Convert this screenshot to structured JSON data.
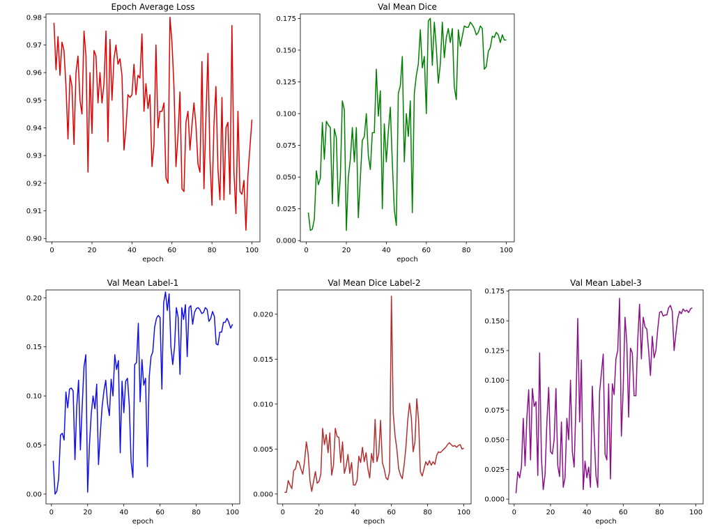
{
  "chart_data": [
    {
      "type": "line",
      "title": "Epoch Average Loss",
      "xlabel": "epoch",
      "ylabel": "",
      "color": "#e00000",
      "xlim": [
        -3,
        104
      ],
      "ylim": [
        0.8988,
        0.9812
      ],
      "xticks": [
        0,
        20,
        40,
        60,
        80,
        100
      ],
      "yticks": [
        0.9,
        0.91,
        0.92,
        0.93,
        0.94,
        0.95,
        0.96,
        0.97,
        0.98
      ],
      "ytick_labels": [
        "0.90",
        "0.91",
        "0.92",
        "0.93",
        "0.94",
        "0.95",
        "0.96",
        "0.97",
        "0.98"
      ],
      "x_start": 1,
      "values": [
        0.978,
        0.961,
        0.973,
        0.959,
        0.971,
        0.968,
        0.955,
        0.936,
        0.959,
        0.955,
        0.934,
        0.96,
        0.966,
        0.95,
        0.945,
        0.975,
        0.966,
        0.924,
        0.96,
        0.938,
        0.968,
        0.966,
        0.949,
        0.96,
        0.949,
        0.956,
        0.975,
        0.935,
        0.972,
        0.95,
        0.965,
        0.97,
        0.963,
        0.965,
        0.959,
        0.932,
        0.94,
        0.952,
        0.951,
        0.952,
        0.963,
        0.952,
        0.959,
        0.958,
        0.974,
        0.946,
        0.956,
        0.947,
        0.952,
        0.926,
        0.934,
        0.97,
        0.94,
        0.946,
        0.946,
        0.949,
        0.922,
        0.92,
        0.98,
        0.971,
        0.955,
        0.926,
        0.937,
        0.953,
        0.918,
        0.917,
        0.942,
        0.946,
        0.932,
        0.941,
        0.949,
        0.941,
        0.927,
        0.924,
        0.964,
        0.918,
        0.944,
        0.967,
        0.929,
        0.912,
        0.941,
        0.955,
        0.925,
        0.914,
        0.951,
        0.914,
        0.94,
        0.942,
        0.916,
        0.977,
        0.924,
        0.909,
        0.946,
        0.917,
        0.916,
        0.921,
        0.903,
        0.923,
        0.933,
        0.943
      ]
    },
    {
      "type": "line",
      "title": "Val Mean Dice",
      "xlabel": "epoch",
      "ylabel": "",
      "color": "#008000",
      "xlim": [
        -3,
        104
      ],
      "ylim": [
        -0.001,
        0.1785
      ],
      "xticks": [
        0,
        20,
        40,
        60,
        80,
        100
      ],
      "yticks": [
        0.0,
        0.025,
        0.05,
        0.075,
        0.1,
        0.125,
        0.15,
        0.175
      ],
      "ytick_labels": [
        "0.000",
        "0.025",
        "0.050",
        "0.075",
        "0.100",
        "0.125",
        "0.150",
        "0.175"
      ],
      "x_start": 1,
      "values": [
        0.022,
        0.008,
        0.009,
        0.017,
        0.055,
        0.044,
        0.049,
        0.093,
        0.064,
        0.094,
        0.091,
        0.089,
        0.029,
        0.088,
        0.081,
        0.027,
        0.05,
        0.11,
        0.103,
        0.008,
        0.05,
        0.064,
        0.089,
        0.062,
        0.089,
        0.018,
        0.049,
        0.079,
        0.082,
        0.1,
        0.067,
        0.056,
        0.085,
        0.085,
        0.135,
        0.098,
        0.118,
        0.025,
        0.092,
        0.062,
        0.086,
        0.105,
        0.061,
        0.024,
        0.012,
        0.116,
        0.122,
        0.145,
        0.062,
        0.1,
        0.082,
        0.11,
        0.022,
        0.116,
        0.13,
        0.139,
        0.166,
        0.136,
        0.145,
        0.1,
        0.173,
        0.175,
        0.138,
        0.172,
        0.152,
        0.124,
        0.139,
        0.172,
        0.144,
        0.16,
        0.167,
        0.156,
        0.167,
        0.121,
        0.111,
        0.166,
        0.153,
        0.161,
        0.169,
        0.168,
        0.168,
        0.172,
        0.17,
        0.167,
        0.162,
        0.164,
        0.169,
        0.167,
        0.135,
        0.137,
        0.149,
        0.152,
        0.161,
        0.16,
        0.164,
        0.162,
        0.156,
        0.162,
        0.158,
        0.158
      ]
    },
    {
      "type": "line",
      "title": "Val Mean Label-1",
      "xlabel": "epoch",
      "ylabel": "",
      "color": "#1010e8",
      "xlim": [
        -3,
        104
      ],
      "ylim": [
        -0.01,
        0.208
      ],
      "xticks": [
        0,
        20,
        40,
        60,
        80,
        100
      ],
      "yticks": [
        0.0,
        0.05,
        0.1,
        0.15,
        0.2
      ],
      "ytick_labels": [
        "0.00",
        "0.05",
        "0.10",
        "0.15",
        "0.20"
      ],
      "x_start": 1,
      "values": [
        0.034,
        0.0,
        0.003,
        0.016,
        0.06,
        0.062,
        0.055,
        0.104,
        0.088,
        0.107,
        0.108,
        0.105,
        0.035,
        0.09,
        0.116,
        0.045,
        0.09,
        0.13,
        0.142,
        0.002,
        0.05,
        0.082,
        0.1,
        0.087,
        0.112,
        0.03,
        0.062,
        0.089,
        0.105,
        0.116,
        0.092,
        0.08,
        0.117,
        0.1,
        0.142,
        0.127,
        0.136,
        0.042,
        0.115,
        0.083,
        0.115,
        0.118,
        0.091,
        0.033,
        0.017,
        0.132,
        0.134,
        0.174,
        0.094,
        0.137,
        0.111,
        0.118,
        0.028,
        0.119,
        0.14,
        0.145,
        0.17,
        0.179,
        0.182,
        0.18,
        0.107,
        0.195,
        0.206,
        0.187,
        0.204,
        0.15,
        0.132,
        0.15,
        0.19,
        0.18,
        0.122,
        0.19,
        0.178,
        0.193,
        0.14,
        0.19,
        0.192,
        0.173,
        0.185,
        0.189,
        0.19,
        0.188,
        0.184,
        0.185,
        0.19,
        0.188,
        0.176,
        0.179,
        0.186,
        0.181,
        0.153,
        0.152,
        0.165,
        0.165,
        0.175,
        0.175,
        0.179,
        0.175,
        0.169,
        0.173
      ]
    },
    {
      "type": "line",
      "title": "Val Mean Dice Label-2",
      "xlabel": "epoch",
      "ylabel": "",
      "color": "#b03030",
      "xlim": [
        -3,
        104
      ],
      "ylim": [
        -0.0011,
        0.0227
      ],
      "xticks": [
        0,
        20,
        40,
        60,
        80,
        100
      ],
      "yticks": [
        0.0,
        0.005,
        0.01,
        0.015,
        0.02
      ],
      "ytick_labels": [
        "0.000",
        "0.005",
        "0.010",
        "0.015",
        "0.020"
      ],
      "x_start": 1,
      "values": [
        0.0002,
        0.0002,
        0.0015,
        0.001,
        0.0006,
        0.0026,
        0.0028,
        0.0037,
        0.0035,
        0.0028,
        0.0022,
        0.0036,
        0.0058,
        0.0045,
        0.0015,
        0.0003,
        0.0014,
        0.0025,
        0.0012,
        0.0014,
        0.0022,
        0.0073,
        0.0055,
        0.0066,
        0.0046,
        0.0068,
        0.0021,
        0.0032,
        0.0073,
        0.0064,
        0.0063,
        0.0035,
        0.0058,
        0.0023,
        0.0031,
        0.0044,
        0.0023,
        0.0035,
        0.001,
        0.001,
        0.0015,
        0.0042,
        0.0035,
        0.0052,
        0.0036,
        0.0046,
        0.0028,
        0.0018,
        0.0045,
        0.0035,
        0.0083,
        0.0036,
        0.0045,
        0.0082,
        0.0035,
        0.0028,
        0.0018,
        0.0016,
        0.0025,
        0.022,
        0.009,
        0.0065,
        0.005,
        0.0028,
        0.0021,
        0.0017,
        0.0032,
        0.0052,
        0.0082,
        0.0101,
        0.0085,
        0.0047,
        0.0058,
        0.0106,
        0.0082,
        0.0025,
        0.002,
        0.0028,
        0.0036,
        0.0032,
        0.0037,
        0.0032,
        0.0036,
        0.0033,
        0.0043,
        0.0047,
        0.0046,
        0.0048,
        0.005,
        0.0052,
        0.0055,
        0.0057,
        0.0055,
        0.0053,
        0.0054,
        0.0052,
        0.0054,
        0.0055,
        0.005,
        0.0051
      ]
    },
    {
      "type": "line",
      "title": "Val Mean Label-3",
      "xlabel": "epoch",
      "ylabel": "",
      "color": "#8b108b",
      "xlim": [
        -3,
        104
      ],
      "ylim": [
        -0.004,
        0.176
      ],
      "xticks": [
        0,
        20,
        40,
        60,
        80,
        100
      ],
      "yticks": [
        0.0,
        0.025,
        0.05,
        0.075,
        0.1,
        0.125,
        0.15,
        0.175
      ],
      "ytick_labels": [
        "0.000",
        "0.025",
        "0.050",
        "0.075",
        "0.100",
        "0.125",
        "0.150",
        "0.175"
      ],
      "x_start": 1,
      "values": [
        0.005,
        0.023,
        0.018,
        0.027,
        0.068,
        0.028,
        0.069,
        0.092,
        0.033,
        0.093,
        0.078,
        0.082,
        0.02,
        0.123,
        0.035,
        0.008,
        0.021,
        0.065,
        0.094,
        0.04,
        0.038,
        0.05,
        0.093,
        0.028,
        0.019,
        0.065,
        0.01,
        0.018,
        0.068,
        0.05,
        0.1,
        0.04,
        0.027,
        0.08,
        0.152,
        0.065,
        0.117,
        0.008,
        0.032,
        0.018,
        0.027,
        0.01,
        0.095,
        0.055,
        0.02,
        0.01,
        0.09,
        0.106,
        0.122,
        0.038,
        0.033,
        0.097,
        0.017,
        0.097,
        0.088,
        0.118,
        0.125,
        0.169,
        0.053,
        0.093,
        0.153,
        0.131,
        0.069,
        0.127,
        0.123,
        0.087,
        0.087,
        0.134,
        0.164,
        0.118,
        0.153,
        0.145,
        0.143,
        0.125,
        0.104,
        0.137,
        0.119,
        0.125,
        0.143,
        0.157,
        0.158,
        0.154,
        0.155,
        0.155,
        0.161,
        0.163,
        0.158,
        0.125,
        0.139,
        0.152,
        0.158,
        0.156,
        0.16,
        0.158,
        0.159,
        0.157,
        0.16,
        0.161
      ]
    }
  ]
}
